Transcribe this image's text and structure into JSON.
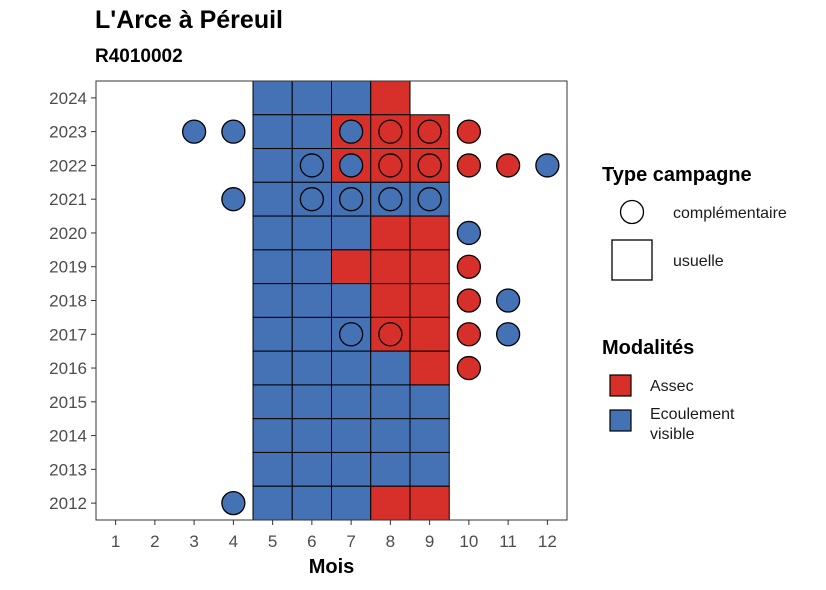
{
  "chart_data": {
    "type": "heatmap",
    "title": "L'Arce à Péreuil",
    "subtitle": "R4010002",
    "xlabel": "Mois",
    "ylabel": "",
    "x_ticks": [
      1,
      2,
      3,
      4,
      5,
      6,
      7,
      8,
      9,
      10,
      11,
      12
    ],
    "y_ticks": [
      2012,
      2013,
      2014,
      2015,
      2016,
      2017,
      2018,
      2019,
      2020,
      2021,
      2022,
      2023,
      2024
    ],
    "xlim": [
      0.5,
      12.5
    ],
    "ylim": [
      2011.5,
      2024.5
    ],
    "colors": {
      "Assec": "#d7302a",
      "Ecoulement visible": "#4472b4"
    },
    "legend_type": {
      "title": "Type campagne",
      "entries": [
        {
          "label": "complémentaire",
          "shape": "circle"
        },
        {
          "label": "usuelle",
          "shape": "square"
        }
      ]
    },
    "legend_modalites": {
      "title": "Modalités",
      "entries": [
        {
          "label": "Assec",
          "lines": [
            "Assec"
          ]
        },
        {
          "label": "Ecoulement visible",
          "lines": [
            "Ecoulement",
            "visible"
          ]
        }
      ]
    },
    "usuelle": [
      {
        "year": 2024,
        "values": {
          "5": "Ecoulement visible",
          "6": "Ecoulement visible",
          "7": "Ecoulement visible",
          "8": "Assec"
        }
      },
      {
        "year": 2023,
        "values": {
          "5": "Ecoulement visible",
          "6": "Ecoulement visible",
          "7": "Assec",
          "8": "Assec",
          "9": "Assec"
        }
      },
      {
        "year": 2022,
        "values": {
          "5": "Ecoulement visible",
          "6": "Ecoulement visible",
          "7": "Assec",
          "8": "Assec",
          "9": "Assec"
        }
      },
      {
        "year": 2021,
        "values": {
          "5": "Ecoulement visible",
          "6": "Ecoulement visible",
          "7": "Ecoulement visible",
          "8": "Ecoulement visible",
          "9": "Ecoulement visible"
        }
      },
      {
        "year": 2020,
        "values": {
          "5": "Ecoulement visible",
          "6": "Ecoulement visible",
          "7": "Ecoulement visible",
          "8": "Assec",
          "9": "Assec"
        }
      },
      {
        "year": 2019,
        "values": {
          "5": "Ecoulement visible",
          "6": "Ecoulement visible",
          "7": "Assec",
          "8": "Assec",
          "9": "Assec"
        }
      },
      {
        "year": 2018,
        "values": {
          "5": "Ecoulement visible",
          "6": "Ecoulement visible",
          "7": "Ecoulement visible",
          "8": "Assec",
          "9": "Assec"
        }
      },
      {
        "year": 2017,
        "values": {
          "5": "Ecoulement visible",
          "6": "Ecoulement visible",
          "7": "Ecoulement visible",
          "8": "Assec",
          "9": "Assec"
        }
      },
      {
        "year": 2016,
        "values": {
          "5": "Ecoulement visible",
          "6": "Ecoulement visible",
          "7": "Ecoulement visible",
          "8": "Ecoulement visible",
          "9": "Assec"
        }
      },
      {
        "year": 2015,
        "values": {
          "5": "Ecoulement visible",
          "6": "Ecoulement visible",
          "7": "Ecoulement visible",
          "8": "Ecoulement visible",
          "9": "Ecoulement visible"
        }
      },
      {
        "year": 2014,
        "values": {
          "5": "Ecoulement visible",
          "6": "Ecoulement visible",
          "7": "Ecoulement visible",
          "8": "Ecoulement visible",
          "9": "Ecoulement visible"
        }
      },
      {
        "year": 2013,
        "values": {
          "5": "Ecoulement visible",
          "6": "Ecoulement visible",
          "7": "Ecoulement visible",
          "8": "Ecoulement visible",
          "9": "Ecoulement visible"
        }
      },
      {
        "year": 2012,
        "values": {
          "5": "Ecoulement visible",
          "6": "Ecoulement visible",
          "7": "Ecoulement visible",
          "8": "Assec",
          "9": "Assec"
        }
      }
    ],
    "complementaire": [
      {
        "year": 2023,
        "month": 3,
        "value": "Ecoulement visible"
      },
      {
        "year": 2023,
        "month": 4,
        "value": "Ecoulement visible"
      },
      {
        "year": 2023,
        "month": 7,
        "value": "Ecoulement visible"
      },
      {
        "year": 2023,
        "month": 8,
        "value": "Assec"
      },
      {
        "year": 2023,
        "month": 9,
        "value": "Assec"
      },
      {
        "year": 2023,
        "month": 10,
        "value": "Assec"
      },
      {
        "year": 2022,
        "month": 6,
        "value": "Ecoulement visible"
      },
      {
        "year": 2022,
        "month": 7,
        "value": "Ecoulement visible"
      },
      {
        "year": 2022,
        "month": 8,
        "value": "Assec"
      },
      {
        "year": 2022,
        "month": 9,
        "value": "Assec"
      },
      {
        "year": 2022,
        "month": 10,
        "value": "Assec"
      },
      {
        "year": 2022,
        "month": 11,
        "value": "Assec"
      },
      {
        "year": 2022,
        "month": 12,
        "value": "Ecoulement visible"
      },
      {
        "year": 2021,
        "month": 4,
        "value": "Ecoulement visible"
      },
      {
        "year": 2021,
        "month": 6,
        "value": "Ecoulement visible"
      },
      {
        "year": 2021,
        "month": 7,
        "value": "Ecoulement visible"
      },
      {
        "year": 2021,
        "month": 8,
        "value": "Ecoulement visible"
      },
      {
        "year": 2021,
        "month": 9,
        "value": "Ecoulement visible"
      },
      {
        "year": 2020,
        "month": 10,
        "value": "Ecoulement visible"
      },
      {
        "year": 2019,
        "month": 10,
        "value": "Assec"
      },
      {
        "year": 2018,
        "month": 10,
        "value": "Assec"
      },
      {
        "year": 2018,
        "month": 11,
        "value": "Ecoulement visible"
      },
      {
        "year": 2017,
        "month": 7,
        "value": "Ecoulement visible"
      },
      {
        "year": 2017,
        "month": 8,
        "value": "Assec"
      },
      {
        "year": 2017,
        "month": 10,
        "value": "Assec"
      },
      {
        "year": 2017,
        "month": 11,
        "value": "Ecoulement visible"
      },
      {
        "year": 2016,
        "month": 10,
        "value": "Assec"
      },
      {
        "year": 2012,
        "month": 4,
        "value": "Ecoulement visible"
      }
    ]
  }
}
